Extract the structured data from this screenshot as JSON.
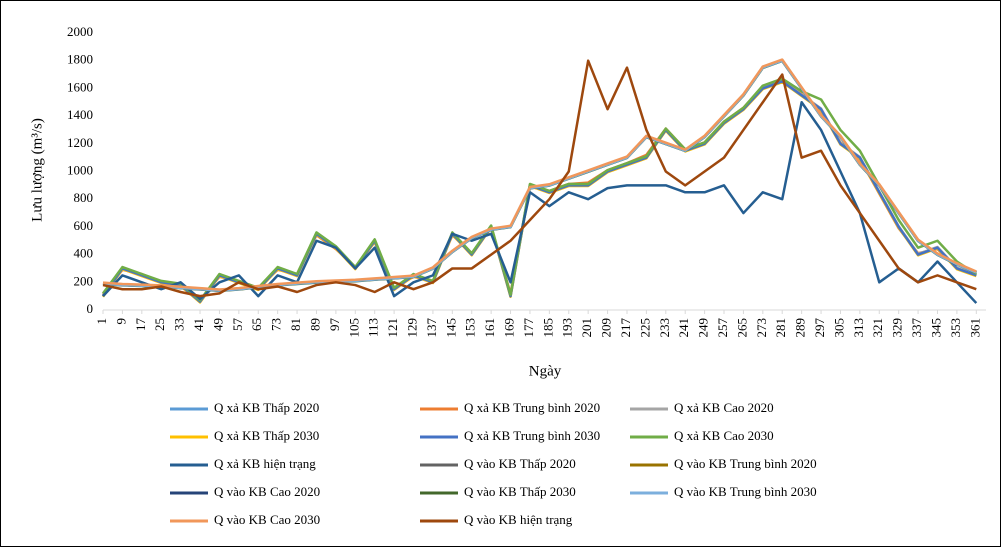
{
  "chart_data": {
    "type": "line",
    "y_label": "Lưu lượng (m³/s)",
    "x_label": "Ngày",
    "x": [
      1,
      9,
      17,
      25,
      33,
      41,
      49,
      57,
      65,
      73,
      81,
      89,
      97,
      105,
      113,
      121,
      129,
      137,
      145,
      153,
      161,
      169,
      177,
      185,
      193,
      201,
      209,
      217,
      225,
      233,
      241,
      249,
      257,
      265,
      273,
      281,
      289,
      297,
      305,
      313,
      321,
      329,
      337,
      345,
      353,
      361
    ],
    "xlim": [
      1,
      365
    ],
    "xticks": [
      1,
      9,
      17,
      25,
      33,
      41,
      49,
      57,
      65,
      73,
      81,
      89,
      97,
      105,
      113,
      121,
      129,
      137,
      145,
      153,
      161,
      169,
      177,
      185,
      193,
      201,
      209,
      217,
      225,
      233,
      241,
      249,
      257,
      265,
      273,
      281,
      289,
      297,
      305,
      313,
      321,
      329,
      337,
      345,
      353,
      361
    ],
    "ylim": [
      0,
      2000
    ],
    "yticks": [
      0,
      200,
      400,
      600,
      800,
      1000,
      1200,
      1400,
      1600,
      1800,
      2000
    ],
    "series": [
      {
        "name": "Q xả KB Thấp 2020",
        "color": "#5b9bd5",
        "values": [
          100,
          300,
          250,
          200,
          180,
          60,
          250,
          200,
          150,
          300,
          250,
          550,
          450,
          300,
          500,
          150,
          250,
          200,
          550,
          400,
          600,
          100,
          900,
          850,
          900,
          900,
          1000,
          1050,
          1100,
          1300,
          1150,
          1200,
          1350,
          1450,
          1600,
          1650,
          1550,
          1450,
          1200,
          1100,
          850,
          600,
          400,
          450,
          300,
          250
        ]
      },
      {
        "name": "Q xả KB Trung bình 2020",
        "color": "#ed7d31",
        "values": [
          110,
          290,
          260,
          200,
          170,
          70,
          240,
          210,
          160,
          290,
          260,
          540,
          440,
          310,
          490,
          160,
          240,
          210,
          540,
          410,
          590,
          120,
          890,
          860,
          910,
          920,
          1010,
          1060,
          1120,
          1310,
          1160,
          1210,
          1360,
          1460,
          1610,
          1660,
          1560,
          1440,
          1210,
          1090,
          840,
          590,
          410,
          440,
          300,
          250
        ]
      },
      {
        "name": "Q xả KB Cao 2020",
        "color": "#a5a5a5",
        "values": [
          105,
          305,
          255,
          205,
          185,
          65,
          255,
          205,
          155,
          305,
          255,
          555,
          455,
          305,
          505,
          155,
          255,
          205,
          555,
          405,
          605,
          105,
          905,
          855,
          905,
          905,
          1005,
          1055,
          1105,
          1305,
          1155,
          1205,
          1355,
          1455,
          1605,
          1655,
          1555,
          1455,
          1205,
          1105,
          855,
          605,
          405,
          455,
          305,
          255
        ]
      },
      {
        "name": "Q xả KB Thấp 2030",
        "color": "#ffc000",
        "values": [
          95,
          295,
          245,
          195,
          175,
          55,
          245,
          195,
          145,
          295,
          245,
          545,
          445,
          295,
          495,
          145,
          245,
          195,
          545,
          395,
          595,
          95,
          895,
          845,
          895,
          895,
          995,
          1045,
          1095,
          1295,
          1145,
          1195,
          1345,
          1445,
          1595,
          1645,
          1545,
          1445,
          1195,
          1095,
          845,
          595,
          395,
          445,
          295,
          245
        ]
      },
      {
        "name": "Q xả KB Trung bình 2030",
        "color": "#4472c4",
        "values": [
          100,
          300,
          250,
          200,
          180,
          60,
          250,
          200,
          150,
          300,
          250,
          550,
          450,
          300,
          500,
          150,
          250,
          200,
          550,
          400,
          600,
          100,
          900,
          850,
          900,
          900,
          1000,
          1050,
          1100,
          1300,
          1150,
          1200,
          1350,
          1450,
          1600,
          1650,
          1550,
          1450,
          1200,
          1100,
          850,
          600,
          400,
          450,
          300,
          250
        ]
      },
      {
        "name": "Q xả KB Cao 2030",
        "color": "#70ad47",
        "values": [
          120,
          310,
          260,
          210,
          190,
          70,
          260,
          210,
          160,
          310,
          260,
          560,
          460,
          310,
          510,
          160,
          260,
          210,
          560,
          410,
          610,
          110,
          910,
          860,
          910,
          910,
          1010,
          1060,
          1110,
          1310,
          1160,
          1210,
          1360,
          1460,
          1620,
          1670,
          1580,
          1520,
          1300,
          1150,
          900,
          650,
          450,
          500,
          350,
          260
        ]
      },
      {
        "name": "Q xả KB hiện trạng",
        "color": "#255e91",
        "values": [
          100,
          250,
          200,
          150,
          200,
          80,
          200,
          250,
          100,
          250,
          200,
          500,
          450,
          300,
          450,
          100,
          200,
          250,
          550,
          500,
          550,
          200,
          850,
          750,
          850,
          800,
          880,
          900,
          900,
          900,
          850,
          850,
          900,
          700,
          850,
          800,
          1500,
          1300,
          1000,
          700,
          200,
          300,
          200,
          350,
          200,
          50
        ]
      },
      {
        "name": "Q vào KB Thấp 2020",
        "color": "#636363",
        "values": [
          190,
          180,
          175,
          170,
          160,
          150,
          140,
          150,
          165,
          180,
          190,
          200,
          205,
          210,
          220,
          230,
          240,
          300,
          420,
          520,
          580,
          600,
          880,
          900,
          950,
          1000,
          1050,
          1100,
          1250,
          1200,
          1150,
          1250,
          1400,
          1550,
          1750,
          1800,
          1600,
          1400,
          1250,
          1050,
          900,
          700,
          500,
          400,
          330,
          270
        ]
      },
      {
        "name": "Q vào KB Trung bình 2020",
        "color": "#997300",
        "values": [
          192,
          182,
          177,
          172,
          162,
          152,
          142,
          152,
          167,
          182,
          192,
          202,
          207,
          212,
          222,
          232,
          242,
          302,
          422,
          522,
          582,
          602,
          882,
          902,
          952,
          1002,
          1052,
          1102,
          1252,
          1202,
          1152,
          1252,
          1402,
          1552,
          1752,
          1802,
          1602,
          1402,
          1252,
          1052,
          902,
          702,
          502,
          402,
          332,
          272
        ]
      },
      {
        "name": "Q vào KB Cao 2020",
        "color": "#264478",
        "values": [
          195,
          185,
          180,
          175,
          165,
          155,
          145,
          155,
          170,
          185,
          195,
          205,
          210,
          215,
          225,
          235,
          245,
          305,
          425,
          525,
          585,
          605,
          885,
          905,
          955,
          1005,
          1055,
          1105,
          1255,
          1205,
          1155,
          1255,
          1405,
          1555,
          1755,
          1805,
          1605,
          1405,
          1255,
          1055,
          905,
          705,
          505,
          405,
          335,
          275
        ]
      },
      {
        "name": "Q vào KB Thấp 2030",
        "color": "#43682b",
        "values": [
          188,
          178,
          173,
          168,
          158,
          148,
          138,
          148,
          163,
          178,
          188,
          198,
          203,
          208,
          218,
          228,
          238,
          298,
          418,
          518,
          578,
          598,
          878,
          898,
          948,
          998,
          1048,
          1098,
          1248,
          1198,
          1148,
          1248,
          1398,
          1548,
          1748,
          1798,
          1598,
          1398,
          1248,
          1048,
          898,
          698,
          498,
          398,
          328,
          268
        ]
      },
      {
        "name": "Q vào KB Trung bình 2030",
        "color": "#7cafdd",
        "values": [
          190,
          180,
          175,
          170,
          160,
          150,
          140,
          150,
          165,
          180,
          190,
          200,
          205,
          210,
          220,
          230,
          240,
          300,
          420,
          520,
          580,
          600,
          880,
          900,
          950,
          1000,
          1050,
          1100,
          1250,
          1200,
          1150,
          1250,
          1400,
          1550,
          1750,
          1800,
          1600,
          1400,
          1250,
          1050,
          900,
          700,
          500,
          400,
          330,
          270
        ]
      },
      {
        "name": "Q vào KB Cao 2030",
        "color": "#f1975a",
        "values": [
          198,
          188,
          183,
          178,
          168,
          158,
          148,
          158,
          173,
          188,
          198,
          208,
          213,
          218,
          228,
          238,
          248,
          308,
          428,
          528,
          588,
          608,
          888,
          908,
          958,
          1008,
          1058,
          1108,
          1258,
          1208,
          1158,
          1258,
          1408,
          1558,
          1758,
          1808,
          1608,
          1408,
          1258,
          1058,
          908,
          708,
          508,
          408,
          338,
          278
        ]
      },
      {
        "name": "Q vào KB hiện trạng",
        "color": "#9e480e",
        "values": [
          180,
          150,
          150,
          170,
          130,
          100,
          120,
          200,
          150,
          170,
          130,
          180,
          200,
          180,
          130,
          200,
          150,
          200,
          300,
          300,
          400,
          500,
          650,
          800,
          1000,
          1800,
          1450,
          1750,
          1300,
          1000,
          900,
          1000,
          1100,
          1300,
          1500,
          1700,
          1100,
          1150,
          900,
          700,
          500,
          300,
          200,
          250,
          200,
          150
        ]
      }
    ]
  }
}
